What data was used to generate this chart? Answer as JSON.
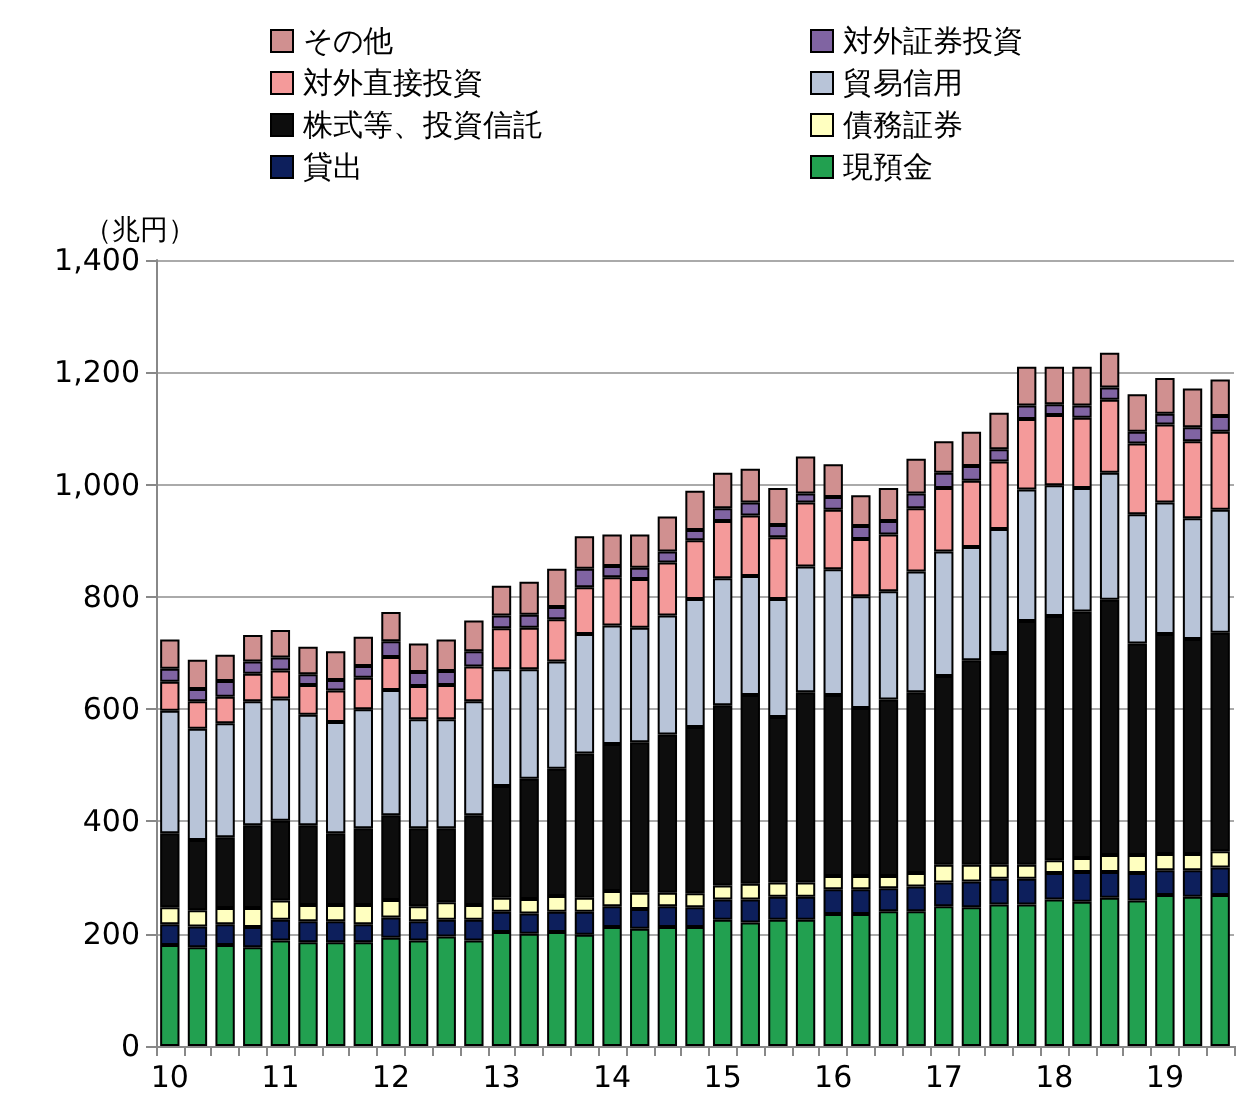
{
  "chart_data": {
    "type": "bar",
    "stacked": true,
    "ylabel": "（兆円）",
    "ylim": [
      0,
      1400
    ],
    "yticks": [
      0,
      200,
      400,
      600,
      800,
      {
        "value": 1000,
        "label": "1,000"
      },
      {
        "value": 1200,
        "label": "1,200"
      },
      {
        "value": 1400,
        "label": "1,400"
      }
    ],
    "grid": "y",
    "legend": "top",
    "categories": [
      "10",
      null,
      null,
      null,
      "11",
      null,
      null,
      null,
      "12",
      null,
      null,
      null,
      "13",
      null,
      null,
      null,
      "14",
      null,
      null,
      null,
      "15",
      null,
      null,
      null,
      "16",
      null,
      null,
      null,
      "17",
      null,
      null,
      null,
      "18",
      null,
      null,
      null,
      "19",
      null,
      null
    ],
    "series": [
      {
        "name": "現預金",
        "color": "#22a050",
        "values": [
          180,
          176,
          180,
          176,
          188,
          185,
          185,
          185,
          193,
          188,
          195,
          188,
          203,
          200,
          203,
          198,
          212,
          209,
          212,
          212,
          225,
          220,
          225,
          225,
          235,
          235,
          240,
          240,
          249,
          247,
          252,
          252,
          261,
          257,
          264,
          259,
          269,
          266,
          269
        ]
      },
      {
        "name": "貸出",
        "color": "#0d1f5c",
        "values": [
          37,
          37,
          37,
          36,
          37,
          37,
          37,
          32,
          36,
          34,
          30,
          37,
          36,
          36,
          36,
          41,
          37,
          35,
          37,
          35,
          36,
          41,
          41,
          41,
          44,
          44,
          41,
          44,
          42,
          46,
          46,
          46,
          47,
          53,
          46,
          49,
          44,
          47,
          49
        ]
      },
      {
        "name": "債務証券",
        "color": "#ffffc0",
        "values": [
          30,
          29,
          29,
          34,
          34,
          29,
          29,
          34,
          31,
          27,
          31,
          26,
          25,
          26,
          28,
          25,
          27,
          29,
          24,
          25,
          25,
          28,
          25,
          25,
          24,
          24,
          22,
          24,
          32,
          30,
          25,
          25,
          23,
          25,
          30,
          32,
          29,
          29,
          29
        ]
      },
      {
        "name": "株式等、投資信託",
        "color": "#0d0d0d",
        "values": [
          132,
          125,
          126,
          147,
          142,
          142,
          128,
          137,
          151,
          139,
          132,
          160,
          199,
          214,
          227,
          257,
          262,
          268,
          282,
          296,
          321,
          336,
          295,
          339,
          322,
          299,
          314,
          322,
          336,
          364,
          377,
          434,
          435,
          439,
          455,
          377,
          392,
          383,
          389
        ]
      },
      {
        "name": "貿易信用",
        "color": "#b8c4d8",
        "values": [
          218,
          198,
          203,
          221,
          218,
          197,
          198,
          212,
          223,
          194,
          194,
          203,
          208,
          195,
          191,
          213,
          211,
          204,
          212,
          228,
          226,
          212,
          210,
          224,
          224,
          199,
          193,
          215,
          222,
          202,
          221,
          234,
          233,
          220,
          226,
          230,
          234,
          215,
          219
        ]
      },
      {
        "name": "対外直接投資",
        "color": "#f49a9a",
        "values": [
          52,
          49,
          47,
          49,
          50,
          53,
          56,
          56,
          59,
          59,
          61,
          62,
          73,
          74,
          75,
          83,
          86,
          87,
          94,
          105,
          102,
          108,
          110,
          114,
          106,
          102,
          101,
          113,
          113,
          118,
          120,
          126,
          125,
          125,
          130,
          126,
          139,
          137,
          139
        ]
      },
      {
        "name": "対外証券投資",
        "color": "#8064a2",
        "values": [
          23,
          22,
          28,
          22,
          23,
          19,
          19,
          21,
          28,
          25,
          25,
          27,
          23,
          23,
          22,
          33,
          20,
          20,
          20,
          18,
          23,
          23,
          22,
          16,
          23,
          23,
          24,
          26,
          27,
          26,
          22,
          24,
          19,
          22,
          22,
          21,
          19,
          25,
          28
        ]
      },
      {
        "name": "その他",
        "color": "#d09090",
        "values": [
          52,
          52,
          47,
          47,
          49,
          49,
          51,
          52,
          52,
          51,
          56,
          55,
          53,
          59,
          68,
          58,
          56,
          59,
          62,
          70,
          63,
          60,
          66,
          66,
          58,
          55,
          59,
          62,
          56,
          61,
          65,
          69,
          67,
          69,
          62,
          67,
          64,
          69,
          65
        ]
      }
    ]
  }
}
